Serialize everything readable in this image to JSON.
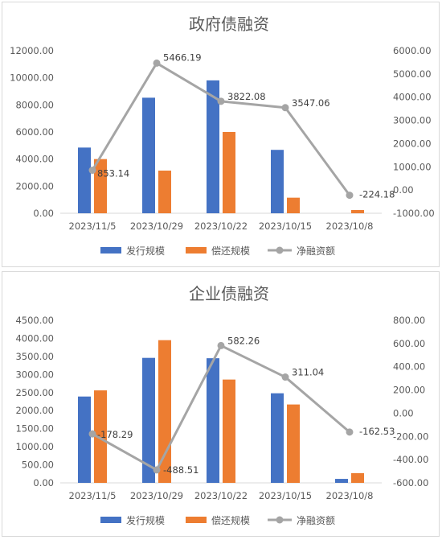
{
  "colors": {
    "issuance": "#4472C4",
    "repayment": "#ED7D31",
    "net": "#A5A5A5",
    "axis_text": "#595959",
    "grid": "#D9D9D9"
  },
  "chart_data": [
    {
      "type": "bar",
      "title": "政府债融资",
      "categories": [
        "2023/11/5",
        "2023/10/29",
        "2023/10/22",
        "2023/10/15",
        "2023/10/8"
      ],
      "series": [
        {
          "name": "发行规模",
          "type": "bar",
          "axis": "left",
          "values": [
            4850,
            8530,
            9810,
            4680,
            0
          ]
        },
        {
          "name": "偿还规模",
          "type": "bar",
          "axis": "left",
          "values": [
            4000,
            3150,
            6000,
            1150,
            240
          ]
        },
        {
          "name": "净融资额",
          "type": "line",
          "axis": "right",
          "values": [
            853.14,
            5466.19,
            3822.08,
            3547.06,
            -224.18
          ]
        }
      ],
      "left_axis": {
        "min": 0,
        "max": 12000,
        "step": 2000,
        "labels": [
          "0.00",
          "2000.00",
          "4000.00",
          "6000.00",
          "8000.00",
          "10000.00",
          "12000.00"
        ]
      },
      "right_axis": {
        "min": -1000,
        "max": 6000,
        "step": 1000,
        "labels": [
          "-1000.00",
          "0.00",
          "1000.00",
          "2000.00",
          "3000.00",
          "4000.00",
          "5000.00",
          "6000.00"
        ]
      },
      "data_labels": [
        "853.14",
        "5466.19",
        "3822.08",
        "3547.06",
        "-224.18"
      ],
      "grid": false,
      "legend": "bottom"
    },
    {
      "type": "bar",
      "title": "企业债融资",
      "categories": [
        "2023/11/5",
        "2023/10/29",
        "2023/10/22",
        "2023/10/15",
        "2023/10/8"
      ],
      "series": [
        {
          "name": "发行规模",
          "type": "bar",
          "axis": "left",
          "values": [
            2390,
            3460,
            3450,
            2480,
            110
          ]
        },
        {
          "name": "偿还规模",
          "type": "bar",
          "axis": "left",
          "values": [
            2560,
            3950,
            2860,
            2170,
            270
          ]
        },
        {
          "name": "净融资额",
          "type": "line",
          "axis": "right",
          "values": [
            -178.29,
            -488.51,
            582.26,
            311.04,
            -162.53
          ]
        }
      ],
      "left_axis": {
        "min": 0,
        "max": 4500,
        "step": 500,
        "labels": [
          "0.00",
          "500.00",
          "1000.00",
          "1500.00",
          "2000.00",
          "2500.00",
          "3000.00",
          "3500.00",
          "4000.00",
          "4500.00"
        ]
      },
      "right_axis": {
        "min": -600,
        "max": 800,
        "step": 200,
        "labels": [
          "-600.00",
          "-400.00",
          "-200.00",
          "0.00",
          "200.00",
          "400.00",
          "600.00",
          "800.00"
        ]
      },
      "data_labels": [
        "-178.29",
        "-488.51",
        "582.26",
        "311.04",
        "-162.53"
      ],
      "grid": false,
      "legend": "bottom"
    }
  ]
}
